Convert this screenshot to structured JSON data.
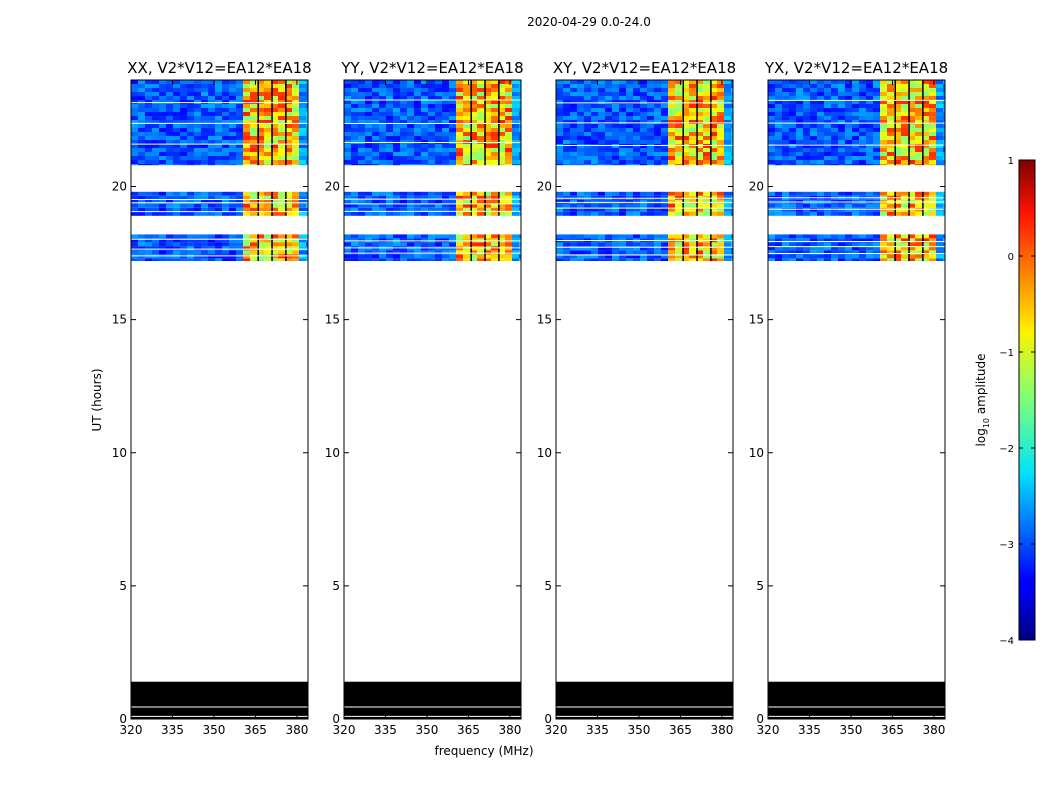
{
  "figure": {
    "suptitle": "2020-04-29 0.0-24.0",
    "xlabel": "frequency (MHz)",
    "ylabel": "UT (hours)",
    "colorbar": {
      "label_prefix": "log",
      "label_sub": "10",
      "label_suffix": " amplitude",
      "ticks": [
        "1",
        "0",
        "−1",
        "−2",
        "−3",
        "−4"
      ],
      "tick_values": [
        1,
        0,
        -1,
        -2,
        -3,
        -4
      ],
      "range": [
        -4,
        1
      ],
      "colormap": "jet"
    }
  },
  "chart_data": [
    {
      "type": "heatmap",
      "title": "XX, V2*V12=EA12*EA18",
      "xticks": [
        "320",
        "335",
        "350",
        "365",
        "380"
      ],
      "xtick_values": [
        320,
        335,
        350,
        365,
        380
      ],
      "yticks": [
        "0",
        "5",
        "10",
        "15",
        "20"
      ],
      "ytick_values": [
        0,
        5,
        10,
        15,
        20
      ],
      "xlim": [
        320,
        384
      ],
      "ylim": [
        0,
        24
      ],
      "data_blocks_hours": [
        [
          20.8,
          24.0
        ],
        [
          18.9,
          19.8
        ],
        [
          17.2,
          18.2
        ]
      ],
      "flagged_black_hours": [
        0,
        1.4
      ],
      "bright_band_mhz": [
        361,
        380
      ]
    },
    {
      "type": "heatmap",
      "title": "YY, V2*V12=EA12*EA18",
      "xticks": [
        "320",
        "335",
        "350",
        "365",
        "380"
      ],
      "xtick_values": [
        320,
        335,
        350,
        365,
        380
      ],
      "yticks": [
        "0",
        "5",
        "10",
        "15",
        "20"
      ],
      "ytick_values": [
        0,
        5,
        10,
        15,
        20
      ],
      "xlim": [
        320,
        384
      ],
      "ylim": [
        0,
        24
      ],
      "data_blocks_hours": [
        [
          20.8,
          24.0
        ],
        [
          18.9,
          19.8
        ],
        [
          17.2,
          18.2
        ]
      ],
      "flagged_black_hours": [
        0,
        1.4
      ],
      "bright_band_mhz": [
        361,
        380
      ]
    },
    {
      "type": "heatmap",
      "title": "XY, V2*V12=EA12*EA18",
      "xticks": [
        "320",
        "335",
        "350",
        "365",
        "380"
      ],
      "xtick_values": [
        320,
        335,
        350,
        365,
        380
      ],
      "yticks": [
        "0",
        "5",
        "10",
        "15",
        "20"
      ],
      "ytick_values": [
        0,
        5,
        10,
        15,
        20
      ],
      "xlim": [
        320,
        384
      ],
      "ylim": [
        0,
        24
      ],
      "data_blocks_hours": [
        [
          20.8,
          24.0
        ],
        [
          18.9,
          19.8
        ],
        [
          17.2,
          18.2
        ]
      ],
      "flagged_black_hours": [
        0,
        1.4
      ],
      "bright_band_mhz": [
        361,
        380
      ]
    },
    {
      "type": "heatmap",
      "title": "YX, V2*V12=EA12*EA18",
      "xticks": [
        "320",
        "335",
        "350",
        "365",
        "380"
      ],
      "xtick_values": [
        320,
        335,
        350,
        365,
        380
      ],
      "yticks": [
        "0",
        "5",
        "10",
        "15",
        "20"
      ],
      "ytick_values": [
        0,
        5,
        10,
        15,
        20
      ],
      "xlim": [
        320,
        384
      ],
      "ylim": [
        0,
        24
      ],
      "data_blocks_hours": [
        [
          20.8,
          24.0
        ],
        [
          18.9,
          19.8
        ],
        [
          17.2,
          18.2
        ]
      ],
      "flagged_black_hours": [
        0,
        1.4
      ],
      "bright_band_mhz": [
        361,
        380
      ]
    }
  ]
}
